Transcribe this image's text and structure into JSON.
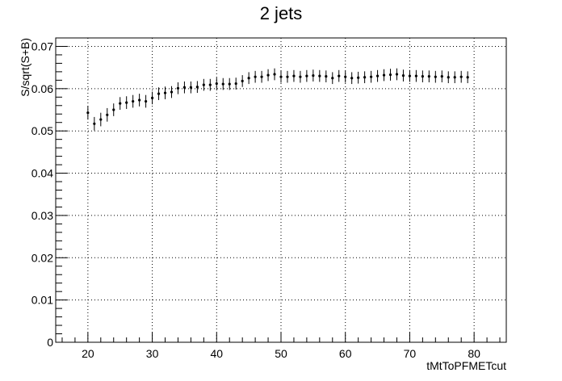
{
  "chart_data": {
    "type": "scatter",
    "title": "2 jets",
    "xlabel": "tMtToPFMETcut",
    "ylabel": "S/sqrt(S+B)",
    "xlim": [
      15,
      85
    ],
    "ylim": [
      0,
      0.072
    ],
    "x_ticks": [
      "20",
      "30",
      "40",
      "50",
      "60",
      "70",
      "80"
    ],
    "y_ticks": [
      "0",
      "0.01",
      "0.02",
      "0.03",
      "0.04",
      "0.05",
      "0.06",
      "0.07"
    ],
    "grid": true,
    "x": [
      20,
      21,
      22,
      23,
      24,
      25,
      26,
      27,
      28,
      29,
      30,
      31,
      32,
      33,
      34,
      35,
      36,
      37,
      38,
      39,
      40,
      41,
      42,
      43,
      44,
      45,
      46,
      47,
      48,
      49,
      50,
      51,
      52,
      53,
      54,
      55,
      56,
      57,
      58,
      59,
      60,
      61,
      62,
      63,
      64,
      65,
      66,
      67,
      68,
      69,
      70,
      71,
      72,
      73,
      74,
      75,
      76,
      77,
      78,
      79
    ],
    "y": [
      0.0543,
      0.0517,
      0.0527,
      0.0538,
      0.055,
      0.0565,
      0.0567,
      0.057,
      0.0573,
      0.057,
      0.0578,
      0.0588,
      0.059,
      0.0592,
      0.0601,
      0.0603,
      0.0603,
      0.0604,
      0.0609,
      0.0609,
      0.0612,
      0.0611,
      0.0611,
      0.0612,
      0.0618,
      0.0625,
      0.0628,
      0.0628,
      0.0632,
      0.0634,
      0.0628,
      0.0628,
      0.063,
      0.0628,
      0.063,
      0.0631,
      0.063,
      0.0629,
      0.0625,
      0.063,
      0.0628,
      0.0625,
      0.0626,
      0.0627,
      0.0628,
      0.063,
      0.0632,
      0.0633,
      0.0634,
      0.0631,
      0.063,
      0.063,
      0.0629,
      0.0629,
      0.0628,
      0.0629,
      0.0627,
      0.0627,
      0.0628,
      0.0627
    ],
    "y_err": [
      0.0016,
      0.0016,
      0.0016,
      0.0016,
      0.0015,
      0.0015,
      0.0015,
      0.0015,
      0.0015,
      0.0015,
      0.0015,
      0.0015,
      0.0015,
      0.0014,
      0.0014,
      0.0014,
      0.0014,
      0.0014,
      0.0014,
      0.0014,
      0.0014,
      0.0014,
      0.0014,
      0.0014,
      0.0014,
      0.0014,
      0.0014,
      0.0014,
      0.0014,
      0.0014,
      0.0014,
      0.0014,
      0.0014,
      0.0014,
      0.0014,
      0.0014,
      0.0014,
      0.0014,
      0.0014,
      0.0014,
      0.0014,
      0.0014,
      0.0014,
      0.0014,
      0.0014,
      0.0014,
      0.0014,
      0.0014,
      0.0014,
      0.0014,
      0.0014,
      0.0014,
      0.0014,
      0.0014,
      0.0014,
      0.0014,
      0.0014,
      0.0014,
      0.0014,
      0.0014
    ]
  }
}
